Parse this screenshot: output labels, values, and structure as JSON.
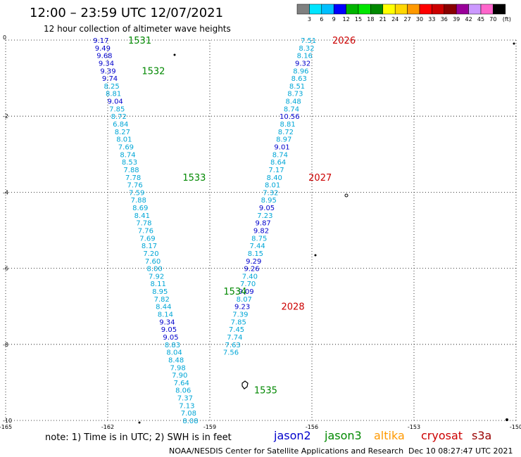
{
  "title": "12:00 – 23:59 UTC 12/07/2021",
  "subtitle": "12 hour collection of altimeter wave heights",
  "note": "note: 1) Time is in UTC; 2) SWH is in feet",
  "credit": "NOAA/NESDIS Center for Satellite Applications and Research",
  "timestamp": "Dec 10 08:27:47 UTC 2021",
  "satellites": [
    {
      "name": "jason2",
      "color": "#0000cc"
    },
    {
      "name": "jason3",
      "color": "#008800"
    },
    {
      "name": "altika",
      "color": "#ff9900"
    },
    {
      "name": "cryosat",
      "color": "#cc0000"
    },
    {
      "name": "s3a",
      "color": "#990000"
    }
  ],
  "colorbar": {
    "unit": "(ft)",
    "labels": [
      "3",
      "6",
      "9",
      "12",
      "15",
      "18",
      "21",
      "24",
      "27",
      "30",
      "33",
      "36",
      "39",
      "42",
      "45",
      "70"
    ],
    "colors": [
      "#808080",
      "#00e5ff",
      "#00bfff",
      "#0000ff",
      "#00b400",
      "#00e600",
      "#008800",
      "#ffff00",
      "#ffd700",
      "#ff9900",
      "#ff0000",
      "#cc0000",
      "#880000",
      "#990099",
      "#cc99ff",
      "#ff66cc",
      "#000000"
    ]
  },
  "chart_data": {
    "type": "scatter",
    "xlim": [
      -165,
      -150
    ],
    "ylim": [
      -10,
      0
    ],
    "xticks": [
      -165,
      -162,
      -159,
      -156,
      -153,
      -150
    ],
    "yticks": [
      0,
      -2,
      -4,
      -6,
      -8,
      -10
    ],
    "xtick_labels": [
      "-165",
      "-162",
      "-159",
      "-156",
      "-153",
      "-150"
    ],
    "ytick_labels": [
      "0",
      "-2",
      "-4",
      "-6",
      "-8",
      "-10"
    ],
    "grid": true,
    "value_colors": [
      {
        "max": 9,
        "color": "#00a6d6"
      },
      {
        "max": 12,
        "color": "#0000cc"
      }
    ],
    "tracks": [
      {
        "name": "jason3",
        "passes": [
          {
            "label": "1531",
            "x": -161.4,
            "y": 0.0
          },
          {
            "label": "1532",
            "x": -161.0,
            "y": -0.8
          },
          {
            "label": "1533",
            "x": -159.8,
            "y": -3.6
          },
          {
            "label": "1534",
            "x": -158.6,
            "y": -6.6
          },
          {
            "label": "1535",
            "x": -157.7,
            "y": -9.2
          }
        ],
        "start": [
          -162.2,
          0.0
        ],
        "step": [
          0.0526,
          -0.2
        ],
        "values": [
          "9.17",
          "9.49",
          "9.68",
          "9.34",
          "9.39",
          "9.74",
          "8.25",
          "8.81",
          "9.04",
          "7.85",
          "8.72",
          "6.84",
          "8.27",
          "8.01",
          "7.69",
          "8.74",
          "8.53",
          "7.88",
          "7.78",
          "7.76",
          "7.59",
          "7.88",
          "8.69",
          "8.41",
          "7.78",
          "7.76",
          "7.69",
          "8.17",
          "7.20",
          "7.60",
          "8.00",
          "7.92",
          "8.11",
          "8.95",
          "7.82",
          "8.44",
          "8.14",
          "9.34",
          "9.05",
          "9.05",
          "8.83",
          "8.04",
          "8.48",
          "7.98",
          "7.90",
          "7.64",
          "8.06",
          "7.37",
          "7.13",
          "7.08",
          "8.08"
        ]
      },
      {
        "name": "cryosat",
        "passes": [
          {
            "label": "2026",
            "x": -155.4,
            "y": 0.0
          },
          {
            "label": "2027",
            "x": -156.1,
            "y": -3.6
          },
          {
            "label": "2028",
            "x": -156.9,
            "y": -7.0
          }
        ],
        "start": [
          -156.1,
          0.0
        ],
        "step": [
          -0.0556,
          -0.2
        ],
        "values": [
          "7.51",
          "8.32",
          "8.16",
          "9.32",
          "8.96",
          "8.63",
          "8.51",
          "8.73",
          "8.48",
          "8.74",
          "10.56",
          "8.81",
          "8.72",
          "8.97",
          "9.01",
          "8.74",
          "8.64",
          "7.17",
          "8.40",
          "8.01",
          "7.32",
          "8.95",
          "9.05",
          "7.23",
          "9.87",
          "9.82",
          "8.75",
          "7.44",
          "8.15",
          "9.29",
          "9.26",
          "7.40",
          "7.70",
          "9.09",
          "8.07",
          "9.23",
          "7.39",
          "7.85",
          "7.45",
          "7.74",
          "7.63",
          "7.56"
        ]
      }
    ]
  }
}
